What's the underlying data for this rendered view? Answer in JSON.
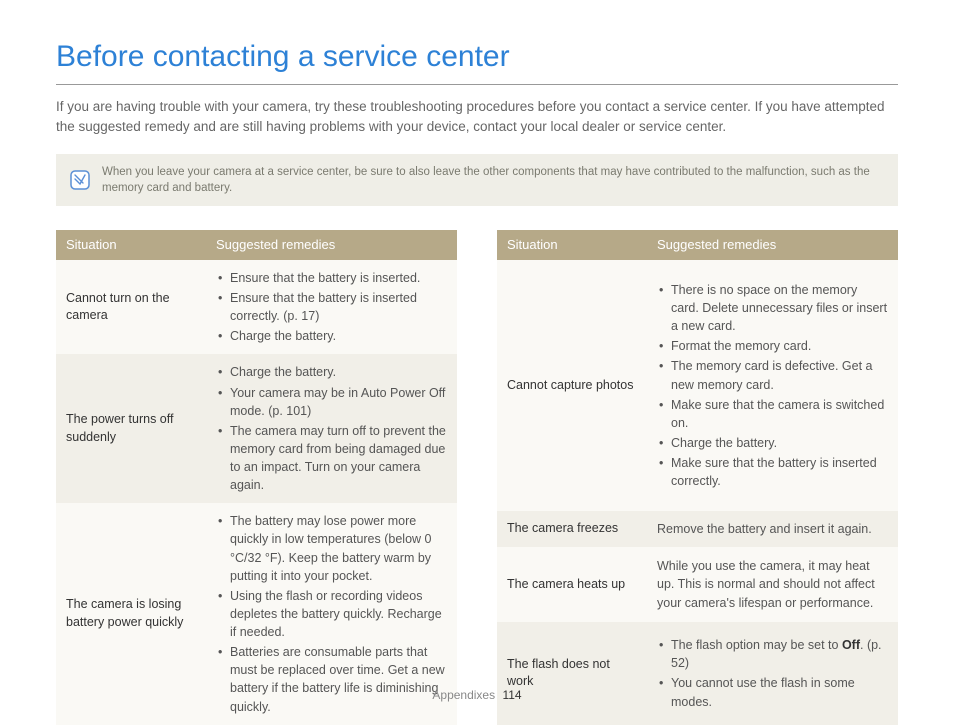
{
  "title": "Before contacting a service center",
  "intro": "If you are having trouble with your camera, try these troubleshooting procedures before you contact a service center. If you have attempted the suggested remedy and are still having problems with your device, contact your local dealer or service center.",
  "note": "When you leave your camera at a service center, be sure to also leave the other components that may have contributed to the malfunction, such as the memory card and battery.",
  "headers": {
    "situation": "Situation",
    "remedies": "Suggested remedies"
  },
  "left_table": [
    {
      "situation": "Cannot turn on the camera",
      "remedies": [
        "Ensure that the battery is inserted.",
        "Ensure that the battery is inserted correctly. (p. 17)",
        "Charge the battery."
      ]
    },
    {
      "situation": "The power turns off suddenly",
      "remedies": [
        "Charge the battery.",
        "Your camera may be in Auto Power Off mode. (p. 101)",
        "The camera may turn off to prevent the memory card from being damaged due to an impact. Turn on your camera again."
      ]
    },
    {
      "situation": "The camera is losing battery power quickly",
      "remedies": [
        "The battery may lose power more quickly in low temperatures (below 0 °C/32 °F). Keep the battery warm by putting it into your pocket.",
        "Using the flash or recording videos depletes the battery quickly. Recharge if needed.",
        "Batteries are consumable parts that must be replaced over time. Get a new battery if the battery life is diminishing quickly."
      ]
    }
  ],
  "right_table": [
    {
      "situation": "Cannot capture photos",
      "remedies": [
        "There is no space on the memory card. Delete unnecessary files or insert a new card.",
        "Format the memory card.",
        "The memory card is defective. Get a new memory card.",
        "Make sure that the camera is switched on.",
        "Charge the battery.",
        "Make sure that the battery is inserted correctly."
      ]
    },
    {
      "situation": "The camera freezes",
      "single": "Remove the battery and insert it again."
    },
    {
      "situation": "The camera heats up",
      "single": "While you use the camera, it may heat up. This is normal and should not affect your camera's lifespan or performance."
    },
    {
      "situation": "The flash does not work",
      "remedies_html": [
        "The flash option may be set to <span class=\"bold\">Off</span>. (p. 52)",
        "You cannot use the flash in some modes."
      ]
    }
  ],
  "footer": {
    "section": "Appendixes",
    "page": "114"
  },
  "colors": {
    "title": "#2d81d6",
    "header_bg": "#b6a988",
    "row_odd": "#faf9f5",
    "row_even": "#f1efe8",
    "note_bg": "#efeee7",
    "text": "#555555",
    "icon_border": "#5a8fd6",
    "icon_fill": "#ffffff"
  }
}
